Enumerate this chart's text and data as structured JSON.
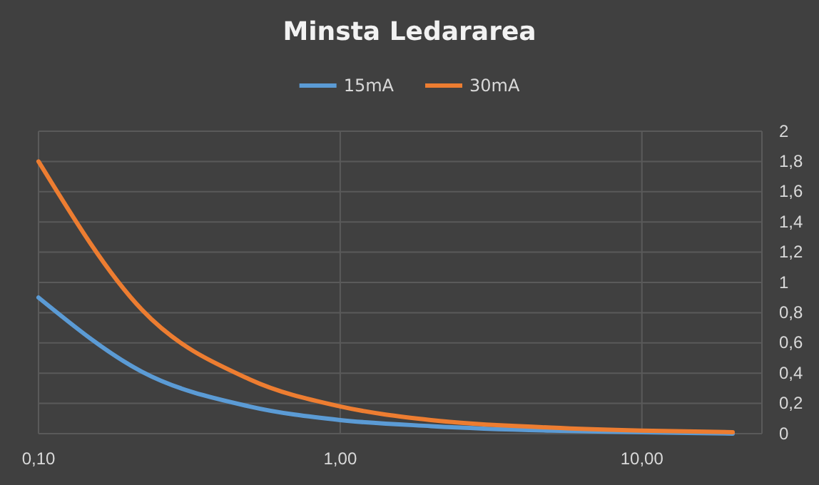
{
  "chart_data": {
    "type": "line",
    "title": "Minsta Ledararea",
    "log": "x",
    "grid": true,
    "legend": "top",
    "marker": "none",
    "line_style": "solid",
    "xlim": [
      0.1,
      25
    ],
    "xticks": [
      {
        "value": 0.1,
        "label": "0,10"
      },
      {
        "value": 1,
        "label": "1,00"
      },
      {
        "value": 10,
        "label": "10,00"
      }
    ],
    "ylim": [
      0,
      2
    ],
    "yticks": [
      0,
      {
        "value": 0.2,
        "label": "0,2"
      },
      {
        "value": 0.4,
        "label": "0,4"
      },
      {
        "value": 0.6,
        "label": "0,6"
      },
      {
        "value": 0.8,
        "label": "0,8"
      },
      1,
      {
        "value": 1.2,
        "label": "1,2"
      },
      {
        "value": 1.4,
        "label": "1,4"
      },
      {
        "value": 1.6,
        "label": "1,6"
      },
      {
        "value": 1.8,
        "label": "1,8"
      },
      2
    ],
    "x": [
      0.1,
      0.22,
      0.5,
      1,
      2,
      5,
      10,
      20
    ],
    "series": [
      {
        "name": "15mA",
        "color": "#5b9bd5",
        "values": [
          0.9,
          0.41,
          0.18,
          0.09,
          0.05,
          0.02,
          0.01,
          0.0
        ]
      },
      {
        "name": "30mA",
        "color": "#ed7d31",
        "values": [
          1.8,
          0.82,
          0.36,
          0.18,
          0.09,
          0.04,
          0.02,
          0.01
        ]
      }
    ]
  }
}
